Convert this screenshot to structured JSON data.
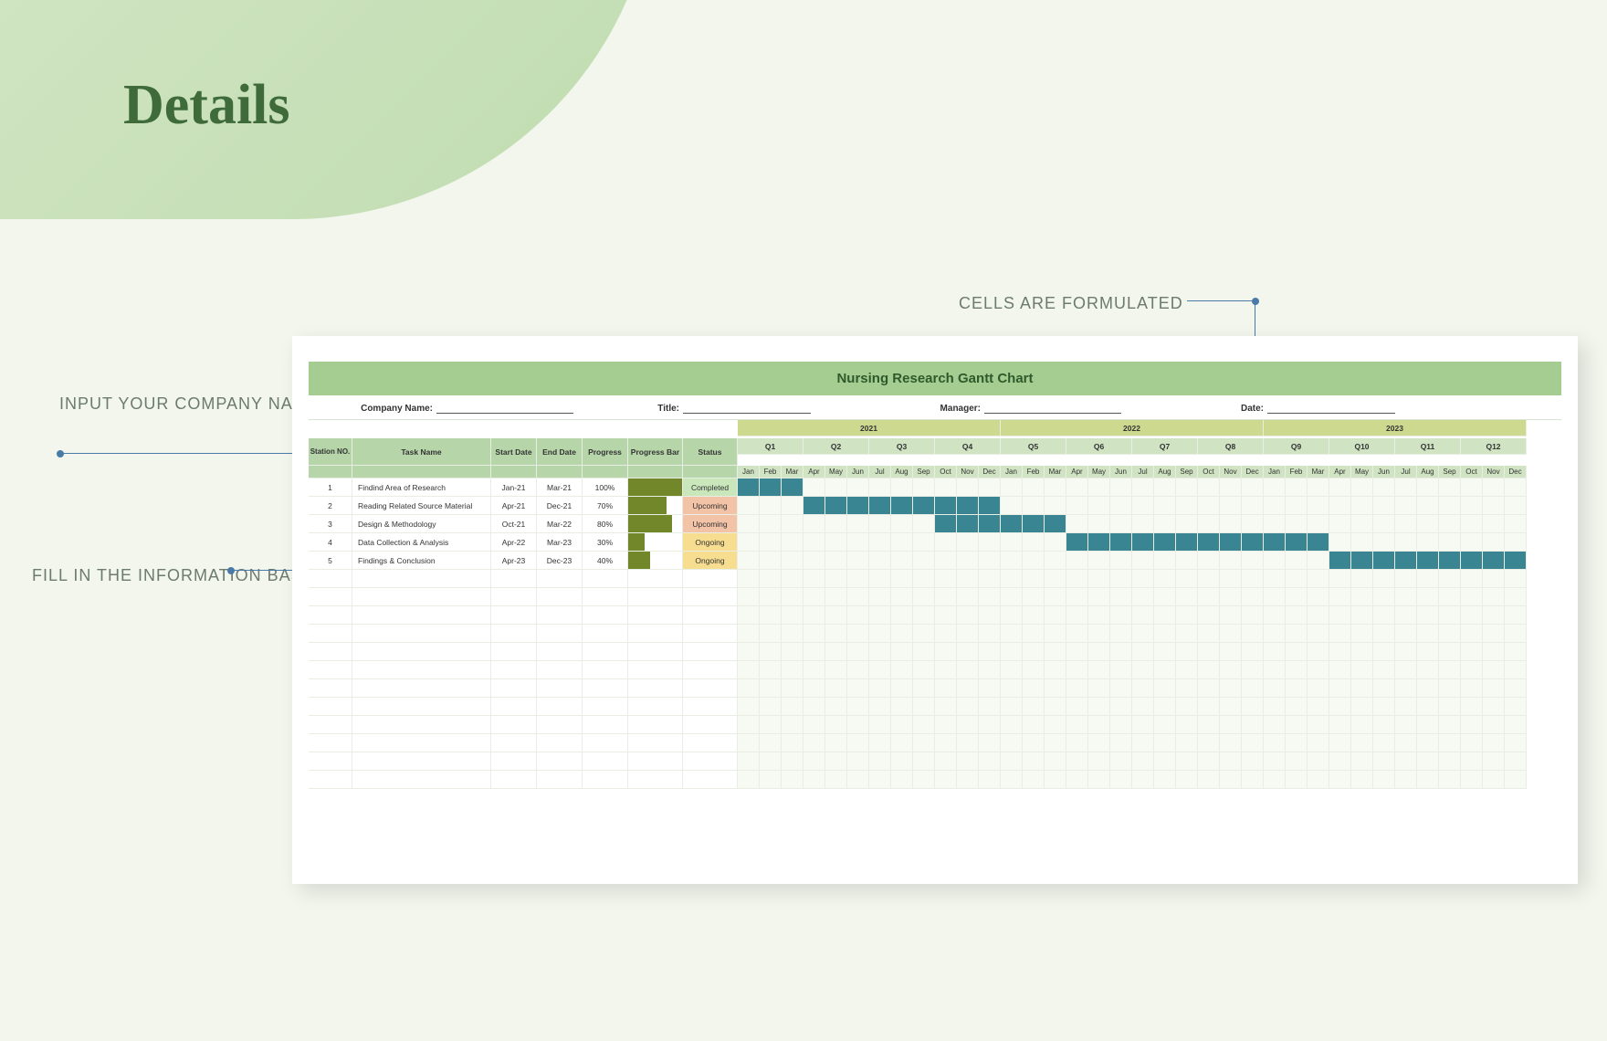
{
  "page": {
    "title": "Details",
    "background_color": "#f2f6ed",
    "blob_gradient": [
      "#d5e7c8",
      "#c0dcb0"
    ],
    "title_color": "#3f6b3b",
    "title_fontsize": 62
  },
  "annotations": {
    "formulated": "CELLS ARE FORMULATED",
    "company": "INPUT YOUR COMPANY NAME HERE",
    "fill": "FILL IN THE INFORMATION BASED ON SPECIFIC NEEDS OR REQUIREMENTS",
    "dot_color": "#4a7ba8"
  },
  "gantt": {
    "title": "Nursing Research Gantt Chart",
    "title_bg": "#a6cd91",
    "title_color": "#2e5a2b",
    "meta_labels": {
      "company": "Company Name:",
      "title": "Title:",
      "manager": "Manager:",
      "date": "Date:"
    },
    "columns": {
      "station": "Station NO.",
      "task": "Task Name",
      "start": "Start  Date",
      "end": "End Date",
      "prog": "Progress",
      "pbar": "Progress Bar",
      "status": "Status"
    },
    "years": [
      "2021",
      "2022",
      "2023"
    ],
    "quarters": [
      "Q1",
      "Q2",
      "Q3",
      "Q4",
      "Q5",
      "Q6",
      "Q7",
      "Q8",
      "Q9",
      "Q10",
      "Q11",
      "Q12"
    ],
    "months": [
      "Jan",
      "Feb",
      "Mar",
      "Apr",
      "May",
      "Jun",
      "Jul",
      "Aug",
      "Sep",
      "Oct",
      "Nov",
      "Dec"
    ],
    "colors": {
      "header_bg": "#b6d6aa",
      "sub_bg": "#d0e3c2",
      "year_bg": "#cdd98f",
      "grid_bg": "#f7faf3",
      "bar_color": "#3a8592",
      "pbar_color": "#72862a",
      "status": {
        "Completed": "#c9e7bb",
        "Upcoming": "#f2c3a6",
        "Ongoing": "#f7dd8f"
      }
    },
    "tasks": [
      {
        "no": "1",
        "name": "Findind Area of Research",
        "start": "Jan-21",
        "end": "Mar-21",
        "progress": 100,
        "status": "Completed",
        "bar_start": 0,
        "bar_len": 3
      },
      {
        "no": "2",
        "name": "Reading Related Source Material",
        "start": "Apr-21",
        "end": "Dec-21",
        "progress": 70,
        "status": "Upcoming",
        "bar_start": 3,
        "bar_len": 9
      },
      {
        "no": "3",
        "name": "Design & Methodology",
        "start": "Oct-21",
        "end": "Mar-22",
        "progress": 80,
        "status": "Upcoming",
        "bar_start": 9,
        "bar_len": 6
      },
      {
        "no": "4",
        "name": "Data Collection & Analysis",
        "start": "Apr-22",
        "end": "Mar-23",
        "progress": 30,
        "status": "Ongoing",
        "bar_start": 15,
        "bar_len": 12
      },
      {
        "no": "5",
        "name": "Findings & Conclusion",
        "start": "Apr-23",
        "end": "Dec-23",
        "progress": 40,
        "status": "Ongoing",
        "bar_start": 27,
        "bar_len": 9
      }
    ],
    "empty_rows": 12
  }
}
